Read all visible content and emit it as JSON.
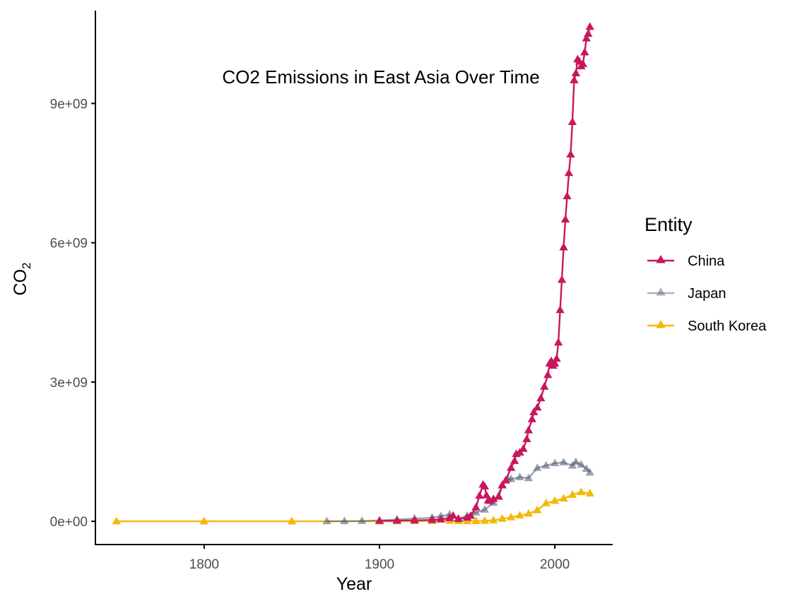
{
  "chart_data": {
    "type": "line",
    "title": "CO2 Emissions in East Asia Over Time",
    "xlabel": "Year",
    "ylabel": "CO",
    "ylabel_subscript": "2",
    "xlim": [
      1738,
      2033
    ],
    "ylim": [
      -500000000,
      11000000000
    ],
    "x_ticks": [
      1800,
      1900,
      2000
    ],
    "x_tick_labels": [
      "1800",
      "1900",
      "2000"
    ],
    "y_ticks": [
      0,
      3000000000,
      6000000000,
      9000000000
    ],
    "y_tick_labels": [
      "0e+00",
      "3e+09",
      "6e+09",
      "9e+09"
    ],
    "grid": false,
    "legend": {
      "title": "Entity",
      "position": "right"
    },
    "marker": "triangle",
    "series": [
      {
        "name": "South Korea",
        "color": "#F5B80A",
        "x": [
          1750,
          1800,
          1850,
          1900,
          1910,
          1920,
          1930,
          1940,
          1945,
          1950,
          1955,
          1960,
          1965,
          1970,
          1975,
          1980,
          1985,
          1990,
          1995,
          2000,
          2005,
          2010,
          2015,
          2020
        ],
        "y": [
          0,
          0,
          0,
          0,
          1000000,
          3000000,
          8000000,
          12000000,
          5000000,
          3000000,
          5000000,
          12000000,
          20000000,
          55000000,
          85000000,
          125000000,
          165000000,
          240000000,
          390000000,
          440000000,
          490000000,
          570000000,
          630000000,
          600000000
        ]
      },
      {
        "name": "Japan",
        "color": "#4B5A70",
        "x": [
          1870,
          1880,
          1890,
          1900,
          1910,
          1920,
          1930,
          1935,
          1940,
          1945,
          1950,
          1955,
          1960,
          1965,
          1970,
          1973,
          1975,
          1980,
          1985,
          1990,
          1995,
          2000,
          2005,
          2010,
          2012,
          2015,
          2018,
          2020
        ],
        "y": [
          1000000,
          3000000,
          8000000,
          20000000,
          40000000,
          60000000,
          80000000,
          110000000,
          150000000,
          60000000,
          120000000,
          190000000,
          250000000,
          400000000,
          770000000,
          920000000,
          910000000,
          950000000,
          930000000,
          1150000000,
          1200000000,
          1250000000,
          1270000000,
          1200000000,
          1280000000,
          1220000000,
          1130000000,
          1050000000
        ]
      },
      {
        "name": "China",
        "color": "#C8175E",
        "x": [
          1900,
          1910,
          1920,
          1930,
          1935,
          1940,
          1942,
          1945,
          1950,
          1952,
          1955,
          1957,
          1959,
          1960,
          1961,
          1962,
          1963,
          1965,
          1968,
          1970,
          1972,
          1975,
          1977,
          1978,
          1980,
          1982,
          1984,
          1985,
          1987,
          1988,
          1990,
          1992,
          1994,
          1996,
          1997,
          1998,
          1999,
          2000,
          2001,
          2002,
          2003,
          2004,
          2005,
          2006,
          2007,
          2008,
          2009,
          2010,
          2011,
          2012,
          2013,
          2014,
          2015,
          2016,
          2017,
          2018,
          2019,
          2020
        ],
        "y": [
          10000000,
          15000000,
          20000000,
          30000000,
          40000000,
          70000000,
          120000000,
          50000000,
          80000000,
          120000000,
          300000000,
          550000000,
          790000000,
          750000000,
          560000000,
          450000000,
          440000000,
          480000000,
          530000000,
          780000000,
          880000000,
          1150000000,
          1300000000,
          1450000000,
          1480000000,
          1560000000,
          1770000000,
          1960000000,
          2200000000,
          2350000000,
          2450000000,
          2650000000,
          2900000000,
          3150000000,
          3400000000,
          3450000000,
          3350000000,
          3400000000,
          3500000000,
          3850000000,
          4550000000,
          5200000000,
          5900000000,
          6500000000,
          7000000000,
          7500000000,
          7900000000,
          8600000000,
          9500000000,
          9650000000,
          9950000000,
          9900000000,
          9800000000,
          9850000000,
          10100000000,
          10400000000,
          10500000000,
          10650000000
        ]
      }
    ]
  }
}
